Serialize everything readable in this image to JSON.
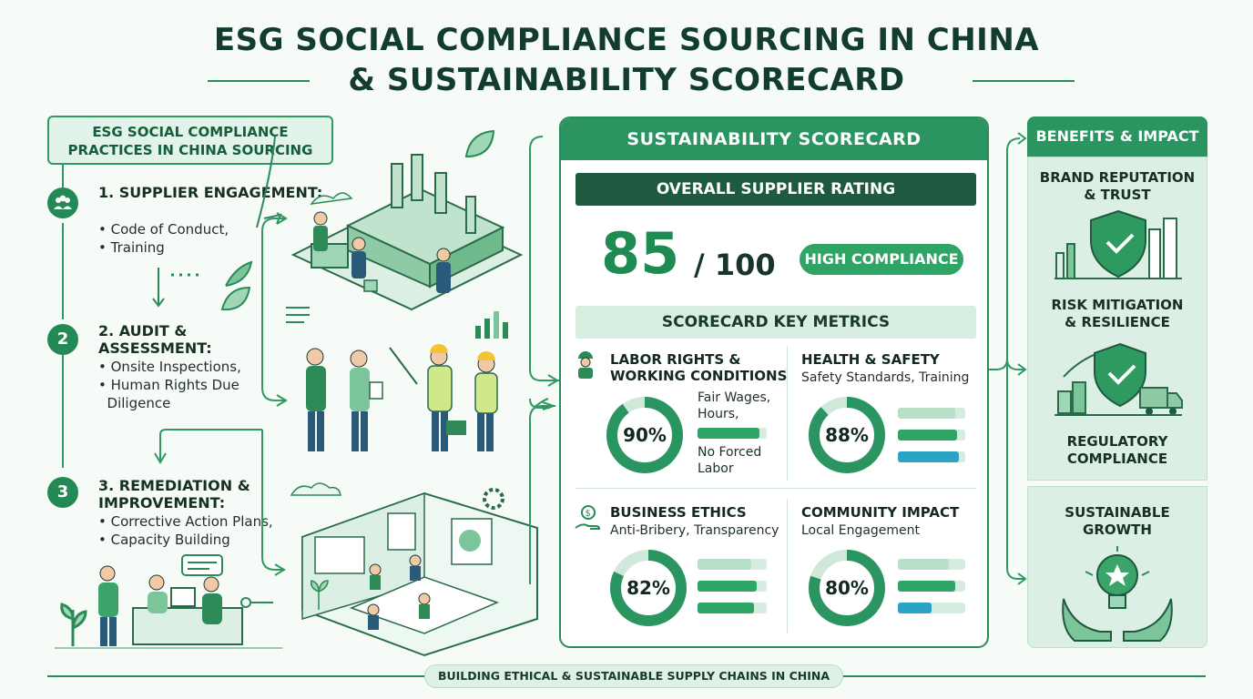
{
  "title": {
    "line1": "ESG SOCIAL COMPLIANCE SOURCING IN CHINA",
    "line2": "& SUSTAINABILITY SCORECARD"
  },
  "practices": {
    "header": "ESG SOCIAL COMPLIANCE PRACTICES IN CHINA SOURCING",
    "steps": [
      {
        "number": "",
        "icon": "people-group-icon",
        "title": "1. SUPPLIER ENGAGEMENT:",
        "bullets": [
          "Code of Conduct,",
          "Training"
        ]
      },
      {
        "number": "2",
        "title": "2. AUDIT & ASSESSMENT:",
        "bullets": [
          "Onsite Inspections,",
          "Human Rights Due",
          "Diligence"
        ]
      },
      {
        "number": "3",
        "title": "3. REMEDIATION & IMPROVEMENT:",
        "bullets": [
          "Corrective Action Plans,",
          "Capacity Building"
        ]
      }
    ]
  },
  "scorecard": {
    "header": "SUSTAINABILITY SCORECARD",
    "overall_label": "OVERALL SUPPLIER RATING",
    "score": "85",
    "out_of": "/ 100",
    "badge": "HIGH COMPLIANCE",
    "key_metrics_label": "SCORECARD KEY METRICS",
    "metrics": [
      {
        "title1": "LABOR RIGHTS &",
        "title2": "WORKING CONDITIONS",
        "subtitle": "",
        "notes": [
          "Fair Wages,",
          "Hours,",
          "No Forced",
          "Labor"
        ],
        "percent_label": "90%",
        "percent": 90,
        "bars": [
          0.9
        ],
        "icon": "worker-icon"
      },
      {
        "title1": "HEALTH & SAFETY",
        "title2": "",
        "subtitle": "Safety Standards, Training",
        "notes": [],
        "percent_label": "88%",
        "percent": 88,
        "bars": [
          0.85,
          0.88,
          0.9
        ],
        "icon": ""
      },
      {
        "title1": "BUSINESS ETHICS",
        "title2": "",
        "subtitle": "Anti-Bribery, Transparency",
        "notes": [],
        "percent_label": "82%",
        "percent": 82,
        "bars": [
          0.78,
          0.86,
          0.82
        ],
        "icon": "money-hand-icon"
      },
      {
        "title1": "COMMUNITY IMPACT",
        "title2": "",
        "subtitle": "Local Engagement",
        "notes": [],
        "percent_label": "80%",
        "percent": 80,
        "bars": [
          0.75,
          0.85,
          0.5
        ],
        "icon": ""
      }
    ]
  },
  "benefits": {
    "header": "BENEFITS & IMPACT",
    "items": [
      {
        "title1": "BRAND REPUTATION",
        "title2": "& TRUST",
        "icon": "shield-check-icon"
      },
      {
        "title1": "RISK MITIGATION",
        "title2": "& RESILIENCE",
        "icon": "shield-truck-icon"
      },
      {
        "title1": "REGULATORY",
        "title2": "COMPLIANCE",
        "icon": ""
      },
      {
        "title1": "SUSTAINABLE",
        "title2": "GROWTH",
        "icon": "hands-lightbulb-icon"
      }
    ]
  },
  "footer": "BUILDING ETHICAL & SUSTAINABLE SUPPLY CHAINS IN CHINA",
  "colors": {
    "primary": "#2a9560",
    "dark": "#1e5a3f",
    "light": "#dcefe4",
    "bar_green": "#2fa565",
    "bar_blue": "#2ba3c4"
  }
}
